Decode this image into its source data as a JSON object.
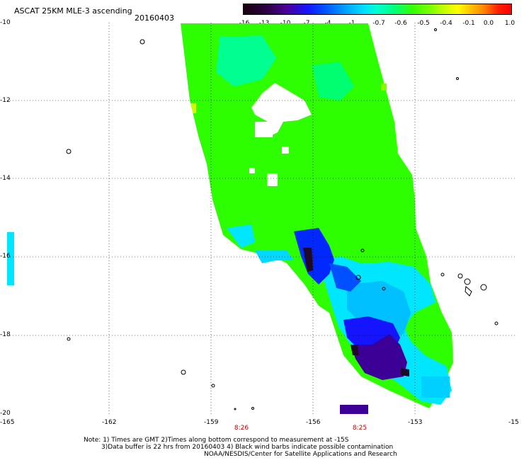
{
  "title": "ASCAT 25KM MLE-3 ascending",
  "date": "20160403",
  "colorbar": {
    "labels": [
      "-16",
      "-13",
      "-10",
      "-7",
      "-4",
      "-1",
      "-0.7",
      "-0.6",
      "-0.5",
      "-0.4",
      "-0.1",
      "0.0",
      "1.0"
    ]
  },
  "lat_labels": [
    "-10",
    "-12",
    "-14",
    "-16",
    "-18",
    "-20"
  ],
  "lon_labels": [
    "-165",
    "-162",
    "-159",
    "-156",
    "-153",
    "-15"
  ],
  "time_labels": [
    "8:26",
    "8:25"
  ],
  "notes": [
    "Note: 1) Times are GMT 2)Times along bottom correspond to measurement at -15S",
    "3)Data buffer is 22 hrs from 20160403 4) Black wind barbs indicate possible contamination",
    "NOAA/NESDIS/Center for Satellite Applications and Research"
  ],
  "colors": {
    "green": "#2eff00",
    "cyan": "#00e6ff",
    "blue": "#0028ff",
    "purple": "#3c0096",
    "dark": "#1e0a28"
  }
}
